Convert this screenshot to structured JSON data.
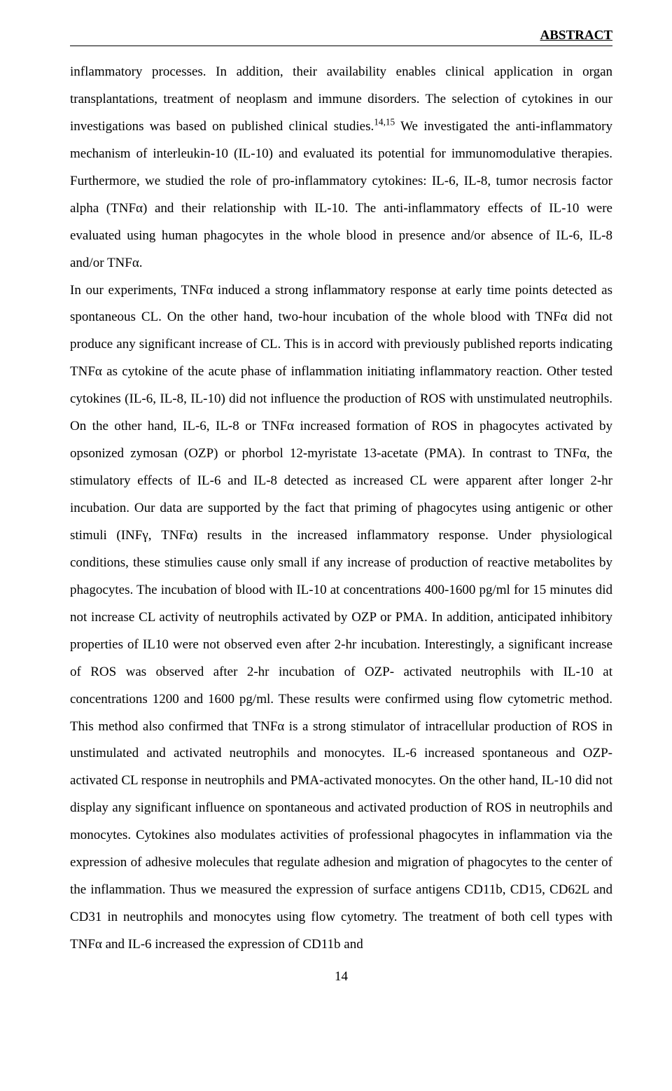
{
  "header": "ABSTRACT",
  "paragraphs": {
    "p1": "inflammatory processes. In addition, their availability enables clinical application in organ transplantations, treatment of neoplasm and immune disorders. The selection of cytokines in our investigations was based on published clinical studies.",
    "sup1": "14,15",
    "p2": " We investigated the anti-inflammatory mechanism of interleukin-10 (IL-10) and evaluated its potential for immunomodulative therapies. Furthermore, we studied the role of pro-inflammatory cytokines: IL-6, IL-8, tumor necrosis factor alpha (TNFα) and their relationship with IL-10. The anti-inflammatory effects of IL-10 were evaluated using human phagocytes in the whole blood in presence and/or absence of IL-6, IL-8 and/or TNFα.",
    "p3": "In our experiments, TNFα induced a strong inflammatory response at early time points detected as spontaneous CL. On the other hand, two-hour incubation of the whole blood with TNFα did not produce any significant increase of CL. This is in accord with previously published reports indicating TNFα as cytokine of the acute phase of inflammation initiating inflammatory reaction. Other tested cytokines (IL-6, IL-8, IL-10) did not influence the production of ROS with unstimulated neutrophils. On the other hand, IL-6, IL-8 or TNFα  increased formation of ROS in phagocytes activated by opsonized zymosan (OZP) or phorbol 12-myristate 13-acetate (PMA). In contrast to TNFα, the stimulatory effects of IL-6 and IL-8 detected as increased CL were apparent after longer 2-hr incubation. Our data are supported by the fact that priming of phagocytes using antigenic or other stimuli (INFγ, TNFα) results in the increased inflammatory response. Under physiological conditions, these stimulies cause only small if any increase of production of reactive metabolites by phagocytes. The incubation of blood with IL-10 at concentrations 400-1600 pg/ml for 15 minutes did not increase CL activity of neutrophils activated by OZP or PMA. In addition, anticipated inhibitory properties of IL10 were not observed even after 2-hr incubation. Interestingly, a significant increase of ROS was observed after 2-hr incubation of OZP- activated neutrophils with IL-10 at concentrations 1200 and 1600 pg/ml. These results were confirmed using flow cytometric method. This method also confirmed that TNFα is a strong stimulator of intracellular production of ROS in unstimulated and activated neutrophils and monocytes. IL-6 increased spontaneous and OZP-activated CL response in neutrophils and PMA-activated monocytes. On the other hand, IL-10 did not display any significant influence on spontaneous and activated production of ROS in neutrophils and monocytes. Cytokines also modulates activities of professional phagocytes in inflammation via the expression of adhesive molecules that regulate adhesion and migration of phagocytes to the center of the inflammation. Thus we measured the expression of surface antigens CD11b, CD15, CD62L and CD31 in neutrophils and monocytes using flow cytometry. The treatment of both cell types with TNFα and IL-6 increased the expression of CD11b and"
  },
  "page_number": "14"
}
